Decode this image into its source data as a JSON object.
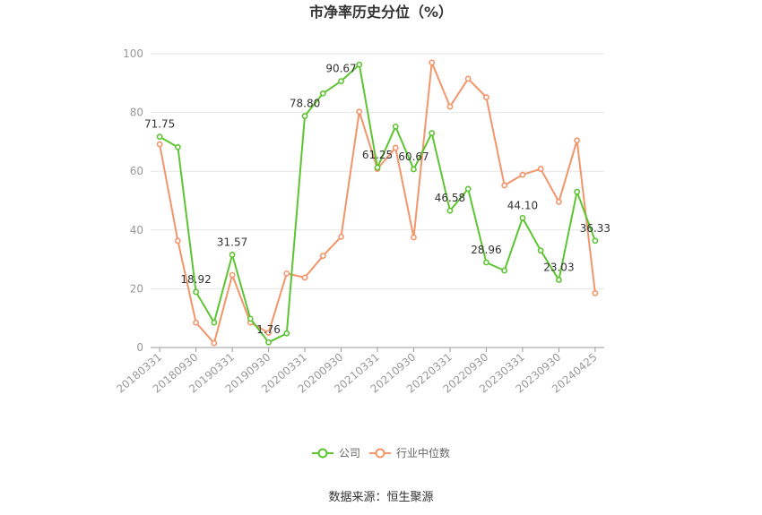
{
  "chart_data": {
    "type": "line",
    "title": "市净率历史分位（%）",
    "xlabel": "",
    "ylabel": "",
    "ylim": [
      0,
      100
    ],
    "yticks": [
      0,
      20,
      40,
      60,
      80,
      100
    ],
    "grid": true,
    "legend_position": "bottom",
    "x": [
      "20180331",
      "20180630",
      "20180930",
      "20181231",
      "20190331",
      "20190630",
      "20190930",
      "20191231",
      "20200331",
      "20200630",
      "20200930",
      "20201231",
      "20210331",
      "20210630",
      "20210930",
      "20211231",
      "20220331",
      "20220630",
      "20220930",
      "20221231",
      "20230331",
      "20230630",
      "20230930",
      "20231231",
      "20240425"
    ],
    "x_tick_labels": [
      "20180331",
      "20180930",
      "20190331",
      "20190930",
      "20200331",
      "20200930",
      "20210331",
      "20210930",
      "20220331",
      "20220930",
      "20230331",
      "20230930",
      "20240425"
    ],
    "series": [
      {
        "name": "公司",
        "color": "#5cc531",
        "values": [
          71.75,
          68.2,
          18.92,
          8.5,
          31.57,
          9.8,
          1.76,
          4.8,
          78.8,
          86.5,
          90.67,
          96.3,
          61.25,
          75.2,
          60.67,
          73.0,
          46.58,
          54.0,
          28.96,
          26.2,
          44.1,
          33.0,
          23.03,
          53.0,
          36.33
        ]
      },
      {
        "name": "行业中位数",
        "color": "#f2956a",
        "values": [
          69.2,
          36.3,
          8.5,
          1.5,
          24.7,
          8.5,
          5.0,
          25.2,
          23.8,
          31.2,
          37.7,
          80.3,
          60.8,
          68.0,
          37.5,
          97.0,
          82.0,
          91.5,
          85.2,
          55.2,
          58.8,
          60.8,
          49.6,
          70.5,
          18.5
        ]
      }
    ],
    "data_labels": [
      {
        "series": 0,
        "index": 0,
        "text": "71.75"
      },
      {
        "series": 0,
        "index": 2,
        "text": "18.92"
      },
      {
        "series": 0,
        "index": 4,
        "text": "31.57"
      },
      {
        "series": 0,
        "index": 6,
        "text": "1.76"
      },
      {
        "series": 0,
        "index": 8,
        "text": "78.80"
      },
      {
        "series": 0,
        "index": 10,
        "text": "90.67"
      },
      {
        "series": 0,
        "index": 12,
        "text": "61.25"
      },
      {
        "series": 0,
        "index": 14,
        "text": "60.67"
      },
      {
        "series": 0,
        "index": 16,
        "text": "46.58"
      },
      {
        "series": 0,
        "index": 18,
        "text": "28.96"
      },
      {
        "series": 0,
        "index": 20,
        "text": "44.10"
      },
      {
        "series": 0,
        "index": 22,
        "text": "23.03"
      },
      {
        "series": 0,
        "index": 24,
        "text": "36.33"
      }
    ]
  },
  "source_text": "数据来源：恒生聚源"
}
